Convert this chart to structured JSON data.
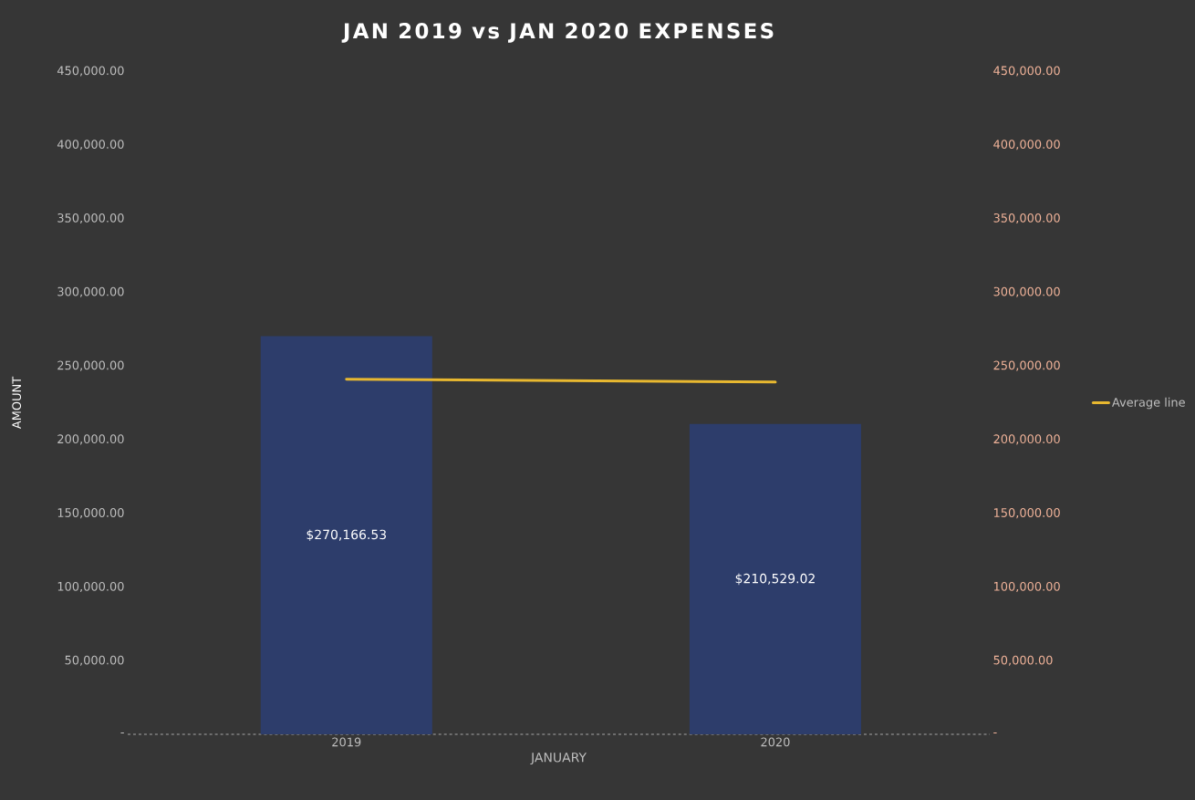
{
  "chart_data": {
    "type": "bar",
    "title": "JAN 2019 vs JAN 2020 EXPENSES",
    "xlabel": "JANUARY",
    "ylabel": "AMOUNT",
    "categories": [
      "2019",
      "2020"
    ],
    "series": [
      {
        "color": "#2d3d6b",
        "values": [
          270166.53,
          210529.02
        ],
        "value_labels": [
          "$270,166.53",
          "$210,529.02"
        ]
      },
      {
        "type": "line",
        "name": "Average line",
        "color": "#e8b830",
        "axis": "y2",
        "values": [
          241000,
          239000
        ]
      }
    ],
    "ylim": [
      0,
      450000
    ],
    "yticks": [
      {
        "value": 0,
        "label": "-"
      },
      {
        "value": 50000,
        "label": "50,000.00"
      },
      {
        "value": 100000,
        "label": "100,000.00"
      },
      {
        "value": 150000,
        "label": "150,000.00"
      },
      {
        "value": 200000,
        "label": "200,000.00"
      },
      {
        "value": 250000,
        "label": "250,000.00"
      },
      {
        "value": 300000,
        "label": "300,000.00"
      },
      {
        "value": 350000,
        "label": "350,000.00"
      },
      {
        "value": 400000,
        "label": "400,000.00"
      },
      {
        "value": 450000,
        "label": "450,000.00"
      }
    ],
    "y2lim": [
      0,
      450000
    ],
    "y2ticks": [
      {
        "value": 0,
        "label": "-"
      },
      {
        "value": 50000,
        "label": "50,000.00"
      },
      {
        "value": 100000,
        "label": "100,000.00"
      },
      {
        "value": 150000,
        "label": "150,000.00"
      },
      {
        "value": 200000,
        "label": "200,000.00"
      },
      {
        "value": 250000,
        "label": "250,000.00"
      },
      {
        "value": 300000,
        "label": "300,000.00"
      },
      {
        "value": 350000,
        "label": "350,000.00"
      },
      {
        "value": 400000,
        "label": "400,000.00"
      },
      {
        "value": 450000,
        "label": "450,000.00"
      }
    ],
    "legend": "right",
    "grid": false
  }
}
